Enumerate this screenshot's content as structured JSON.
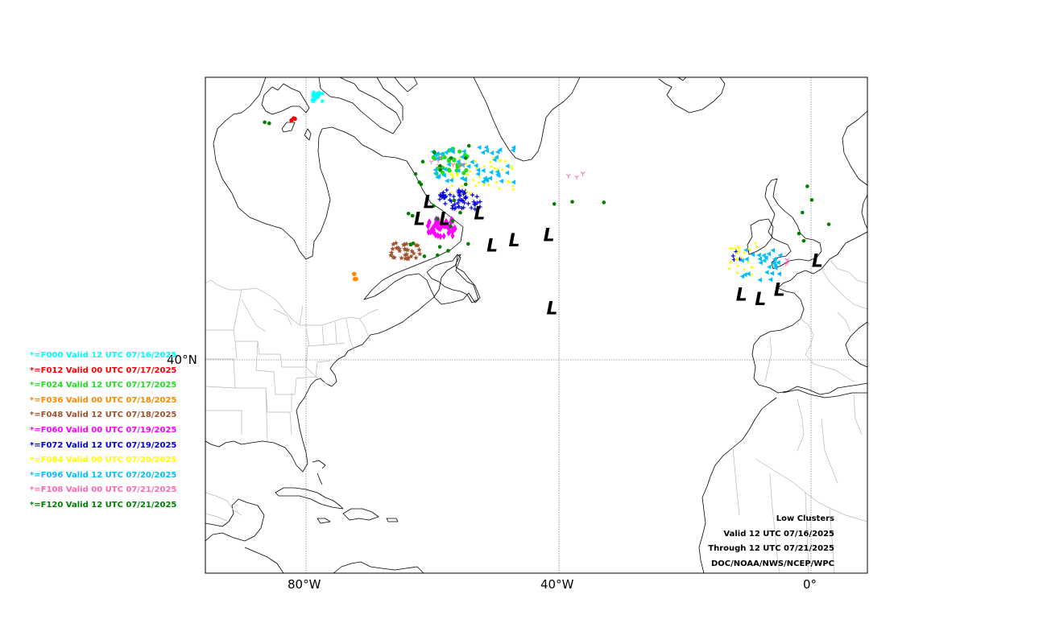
{
  "map": {
    "lon_range": [
      -100,
      11
    ],
    "lat_labels": [
      "40°N"
    ],
    "lon_labels": [
      "80°W",
      "40°W",
      "0°"
    ],
    "low_symbol": "L",
    "colors": {
      "land_outline": "#000000",
      "state_border": "#b8b8b8",
      "grid": "#888888"
    },
    "low_centers": [
      {
        "lon": -60.5,
        "lat": 56.5
      },
      {
        "lon": -62.0,
        "lat": 55.0
      },
      {
        "lon": -58.0,
        "lat": 55.0
      },
      {
        "lon": -52.5,
        "lat": 55.5
      },
      {
        "lon": -50.5,
        "lat": 52.5
      },
      {
        "lon": -47.0,
        "lat": 53.0
      },
      {
        "lon": -41.5,
        "lat": 53.5
      },
      {
        "lon": -41.0,
        "lat": 46.0
      },
      {
        "lon": 1.0,
        "lat": 51.0
      },
      {
        "lon": -11.0,
        "lat": 47.5
      },
      {
        "lon": -8.0,
        "lat": 47.0
      },
      {
        "lon": -5.0,
        "lat": 48.0
      }
    ]
  },
  "legend": [
    {
      "text": "*=F000 Valid 12 UTC 07/16/2025",
      "color": "#00ffff",
      "marker": "star"
    },
    {
      "text": "*=F012 Valid 00 UTC 07/17/2025",
      "color": "#ff0000",
      "marker": "circle"
    },
    {
      "text": "*=F024 Valid 12 UTC 07/17/2025",
      "color": "#22dd22",
      "marker": "circle"
    },
    {
      "text": "*=F036 Valid 00 UTC 07/18/2025",
      "color": "#ff8800",
      "marker": "circle"
    },
    {
      "text": "*=F048 Valid 12 UTC 07/18/2025",
      "color": "#a0522d",
      "marker": "star"
    },
    {
      "text": "*=F060 Valid 00 UTC 07/19/2025",
      "color": "#ff00ff",
      "marker": "diamond"
    },
    {
      "text": "*=F072 Valid 12 UTC 07/19/2025",
      "color": "#0000dd",
      "marker": "plus"
    },
    {
      "text": "*=F084 Valid 00 UTC 07/20/2025",
      "color": "#ffff00",
      "marker": "dot"
    },
    {
      "text": "*=F096 Valid 12 UTC 07/20/2025",
      "color": "#00bfff",
      "marker": "triangle"
    },
    {
      "text": "*=F108 Valid 00 UTC 07/21/2025",
      "color": "#ff69b4",
      "marker": "tri-down"
    },
    {
      "text": "*=F120 Valid 12 UTC 07/21/2025",
      "color": "#008000",
      "marker": "pentagon"
    }
  ],
  "info": {
    "line1": "Low Clusters",
    "line2": "Valid 12 UTC 07/16/2025",
    "line3": "Through 12 UTC 07/21/2025",
    "line4": "DOC/NOAA/NWS/NCEP/WPC"
  }
}
